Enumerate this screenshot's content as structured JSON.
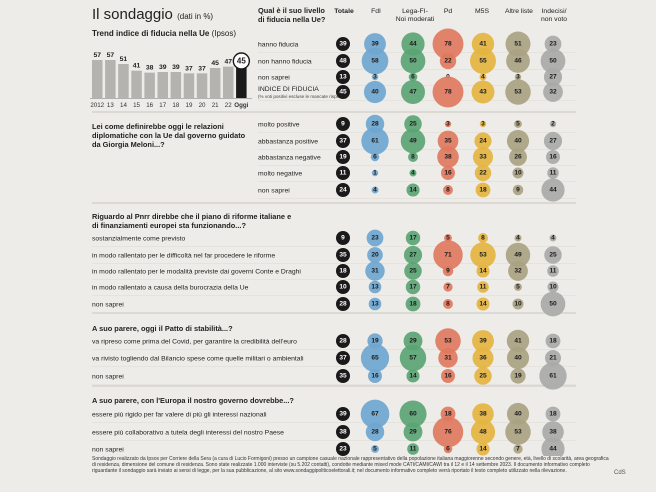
{
  "header": {
    "title": "Il sondaggio",
    "title_note": "(dati in %)",
    "trend_title": "Trend indice di fiducia nella Ue",
    "trend_source": "(Ipsos)"
  },
  "chart_data": [
    {
      "type": "bar",
      "title": "Trend indice di fiducia nella Ue",
      "categories": [
        "2012",
        "13",
        "14",
        "15",
        "16",
        "17",
        "18",
        "19",
        "20",
        "21",
        "22",
        "Oggi"
      ],
      "values": [
        57,
        57,
        51,
        41,
        38,
        39,
        39,
        37,
        37,
        45,
        47,
        45
      ],
      "highlight_last": true
    },
    {
      "type": "bubble-table",
      "column_headers": [
        "Totale",
        "FdI",
        "Lega-FI-\nNoi moderati",
        "Pd",
        "M5S",
        "Altre liste",
        "Indecisi/\nnon voto"
      ],
      "column_colors": [
        "#1a1a1a",
        "#6fa6cf",
        "#5aa473",
        "#e07a5e",
        "#e4b440",
        "#aaa282",
        "#a9aaa8"
      ],
      "sections": [
        {
          "question": "Qual è il suo livello di fiducia nella Ue?",
          "rows": [
            {
              "label": "hanno fiducia",
              "values": [
                39,
                39,
                44,
                78,
                41,
                51,
                23
              ]
            },
            {
              "label": "non hanno fiducia",
              "values": [
                48,
                58,
                50,
                22,
                55,
                46,
                50
              ]
            },
            {
              "label": "non saprei",
              "values": [
                13,
                3,
                6,
                0,
                4,
                3,
                27
              ]
            },
            {
              "label": "INDICE DI FIDUCIA",
              "note": "(% voti positivi escluse le mancate risposte)",
              "values": [
                45,
                40,
                47,
                78,
                43,
                53,
                32
              ]
            }
          ]
        },
        {
          "question": "Lei come definirebbe oggi le relazioni diplomatiche con la Ue dal governo guidato da Giorgia Meloni...?",
          "rows": [
            {
              "label": "molto positive",
              "values": [
                9,
                28,
                25,
                3,
                3,
                5,
                2
              ]
            },
            {
              "label": "abbastanza positive",
              "values": [
                37,
                61,
                49,
                35,
                24,
                40,
                27
              ]
            },
            {
              "label": "abbastanza negative",
              "values": [
                19,
                6,
                8,
                38,
                33,
                26,
                16
              ]
            },
            {
              "label": "molto negative",
              "values": [
                11,
                1,
                4,
                16,
                22,
                10,
                11
              ]
            },
            {
              "label": "non saprei",
              "values": [
                24,
                4,
                14,
                8,
                18,
                9,
                44
              ]
            }
          ]
        },
        {
          "question": "Riguardo al Pnrr direbbe che il piano di riforme italiane e di finanziamenti europei sta funzionando...?",
          "rows": [
            {
              "label": "sostanzialmente come previsto",
              "values": [
                9,
                23,
                17,
                5,
                8,
                4,
                4
              ]
            },
            {
              "label": "in modo rallentato per le difficoltà nel far procedere le riforme",
              "values": [
                35,
                20,
                27,
                71,
                53,
                49,
                25
              ]
            },
            {
              "label": "in modo rallentato per le modalità previste dai governi Conte e Draghi",
              "values": [
                18,
                31,
                25,
                9,
                14,
                32,
                11
              ]
            },
            {
              "label": "in modo rallentato a causa della burocrazia della Ue",
              "values": [
                10,
                13,
                17,
                7,
                11,
                5,
                10
              ]
            },
            {
              "label": "non saprei",
              "values": [
                28,
                13,
                18,
                8,
                14,
                10,
                50
              ]
            }
          ]
        },
        {
          "question": "A suo parere, oggi il Patto di stabilità...?",
          "rows": [
            {
              "label": "va ripreso come prima del Covid, per garantire la credibilità dell'euro",
              "values": [
                28,
                19,
                29,
                53,
                39,
                41,
                18
              ]
            },
            {
              "label": "va rivisto togliendo dal Bilancio spese come quelle militari o ambientali",
              "values": [
                37,
                65,
                57,
                31,
                36,
                40,
                21
              ]
            },
            {
              "label": "non saprei",
              "values": [
                35,
                16,
                14,
                16,
                25,
                19,
                61
              ]
            }
          ]
        },
        {
          "question": "A suo parere, con l'Europa il nostro governo dovrebbe...?",
          "rows": [
            {
              "label": "essere più rigido per far valere di più gli interessi nazionali",
              "values": [
                39,
                67,
                60,
                18,
                38,
                40,
                18
              ]
            },
            {
              "label": "essere più collaborativo a tutela degli interessi del nostro Paese",
              "values": [
                38,
                28,
                29,
                76,
                48,
                53,
                38
              ]
            },
            {
              "label": "non saprei",
              "values": [
                23,
                5,
                11,
                6,
                14,
                7,
                44
              ]
            }
          ]
        }
      ]
    }
  ],
  "footer": {
    "text": "Sondaggio realizzato da Ipsos per Corriere della Sera (a cura di Lucio Formigoni) presso un campione casuale nazionale rappresentativo della popolazione italiana maggiorenne secondo genere, età, livello di scolarità, area geografica di residenza, dimensione del comune di residenza. Sono state realizzate 1.000 interviste (su 5.202 contatti), condotte mediante mixed mode CATI/CAMI/CAWI tra il 12 e il 14 settembre 2023. Il documento informativo completo riguardante il sondaggio sarà inviato ai sensi di legge, per la sua pubblicazione, al sito www.sondaggipoliticoelettorali.it; nel documento informativo completo verrà riportato il testo completo utilizzato nella rilevazione.",
    "credit": "CdS"
  }
}
